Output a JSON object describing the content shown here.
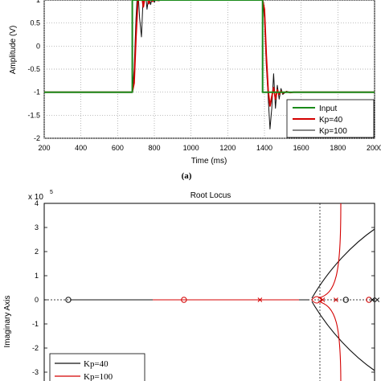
{
  "chart_data": [
    {
      "type": "line",
      "title": "",
      "xlabel": "Time (ms)",
      "ylabel": "Amplitude (V)",
      "xlim": [
        200,
        2000
      ],
      "ylim": [
        -2,
        1
      ],
      "xticks": [
        200,
        400,
        600,
        800,
        1000,
        1200,
        1400,
        1600,
        1800,
        2000
      ],
      "yticks": [
        1,
        0.5,
        0,
        -0.5,
        -1,
        -1.5,
        -2
      ],
      "ytick_labels": [
        "1",
        "0.5",
        "0",
        "-0.5",
        "-1",
        "-1.5",
        "-2"
      ],
      "grid": true,
      "legend": "bottom-right",
      "caption": "(a)",
      "series": [
        {
          "name": "Input",
          "color": "#1a8a1a",
          "x": [
            200,
            680,
            680,
            1390,
            1390,
            2000
          ],
          "y": [
            -1,
            -1,
            1,
            1,
            -1,
            -1
          ]
        },
        {
          "name": "Kp=40",
          "color": "#d40000",
          "x": [
            200,
            680,
            690,
            700,
            710,
            720,
            730,
            740,
            750,
            760,
            770,
            780,
            790,
            800,
            815,
            830,
            850,
            880,
            900,
            1390,
            1400,
            1410,
            1420,
            1430,
            1440,
            1450,
            1460,
            1470,
            1480,
            1490,
            1500,
            1520,
            1540,
            1560,
            1600,
            2000
          ],
          "y": [
            -1,
            -1,
            -0.8,
            0.2,
            0.95,
            1.1,
            1.15,
            0.85,
            1.1,
            1.08,
            0.92,
            1.05,
            0.97,
            1.02,
            0.99,
            1.01,
            1,
            1,
            1,
            1,
            0.8,
            -0.2,
            -0.95,
            -1.3,
            -1.1,
            -0.9,
            -1.15,
            -0.95,
            -1.05,
            -0.98,
            -1.02,
            -0.99,
            -1.01,
            -1,
            -1,
            -1
          ]
        },
        {
          "name": "Kp=100",
          "color": "#111111",
          "x": [
            200,
            680,
            690,
            700,
            710,
            720,
            730,
            740,
            750,
            760,
            770,
            780,
            790,
            800,
            810,
            825,
            840,
            860,
            880,
            900,
            1390,
            1400,
            1410,
            1420,
            1430,
            1440,
            1450,
            1460,
            1470,
            1480,
            1490,
            1500,
            1520,
            1540,
            1560,
            1600,
            2000
          ],
          "y": [
            -1,
            -1,
            -0.5,
            0.6,
            1.3,
            0.6,
            0.2,
            1.15,
            1.25,
            0.8,
            1.1,
            0.9,
            1.08,
            0.95,
            1.03,
            0.98,
            1.01,
            1,
            1,
            1,
            1,
            0.6,
            -0.4,
            -1.1,
            -1.8,
            -1.35,
            -0.6,
            -1.35,
            -0.85,
            -1.15,
            -0.92,
            -1.05,
            -0.98,
            -1.01,
            -1,
            -1,
            -1
          ]
        }
      ]
    },
    {
      "type": "scatter",
      "title": "Root Locus",
      "xlabel": "",
      "ylabel": "Imaginary Axis",
      "y_exponent_label": "x 10",
      "y_exponent": "5",
      "ylim": [
        -3.5,
        4
      ],
      "yticks": [
        4,
        3,
        2,
        1,
        0,
        -1,
        -2,
        -3
      ],
      "grid": false,
      "legend": "bottom-left",
      "series": [
        {
          "name": "Kp=40",
          "color": "#111111"
        },
        {
          "name": "Kp=100",
          "color": "#d40000"
        }
      ],
      "zeros": [
        {
          "x": 0.0,
          "color": "#111111"
        },
        {
          "x": 0.35,
          "color": "#d40000"
        },
        {
          "x": 0.84,
          "color": "#111111"
        },
        {
          "x": 0.91,
          "color": "#d40000"
        },
        {
          "x": 0.975,
          "color": "#d40000"
        }
      ],
      "poles": [
        {
          "x": 0.58,
          "color": "#d40000"
        },
        {
          "x": 0.77,
          "color": "#d40000"
        },
        {
          "x": 0.81,
          "color": "#d40000"
        },
        {
          "x": 0.92,
          "color": "#111111"
        },
        {
          "x": 0.935,
          "color": "#111111"
        }
      ]
    }
  ]
}
